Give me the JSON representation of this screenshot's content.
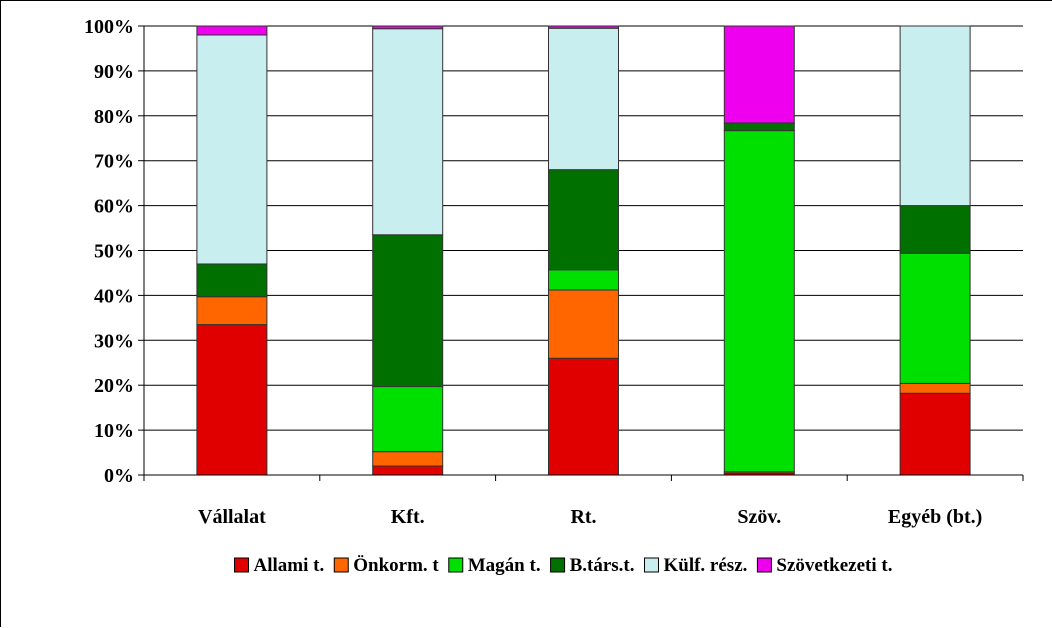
{
  "chart_data": {
    "type": "bar",
    "stacked": "percent",
    "categories": [
      "Vállalat",
      "Kft.",
      "Rt.",
      "Szöv.",
      "Egyéb (bt.)"
    ],
    "ylim": [
      0,
      100
    ],
    "yticks": [
      "0%",
      "10%",
      "20%",
      "30%",
      "40%",
      "50%",
      "60%",
      "70%",
      "80%",
      "90%",
      "100%"
    ],
    "legend_position": "bottom",
    "series": [
      {
        "name": "Allami t.",
        "color": "#e00000",
        "values": [
          33.5,
          2.0,
          26.0,
          0.4,
          18.2
        ]
      },
      {
        "name": "Önkorm. t",
        "color": "#ff6600",
        "values": [
          6.2,
          3.2,
          15.2,
          0.3,
          2.2
        ]
      },
      {
        "name": "Magán t.",
        "color": "#00e000",
        "values": [
          0.0,
          14.5,
          4.5,
          76.0,
          29.0
        ]
      },
      {
        "name": "B.társ.t.",
        "color": "#007000",
        "values": [
          7.3,
          33.8,
          22.3,
          1.7,
          10.6
        ]
      },
      {
        "name": "Külf. rész.",
        "color": "#c8eef0",
        "values": [
          51.0,
          45.9,
          31.5,
          0.0,
          40.0
        ]
      },
      {
        "name": "Szövetkezeti t.",
        "color": "#ee00ee",
        "values": [
          2.0,
          0.6,
          0.5,
          21.6,
          0.0
        ]
      }
    ]
  }
}
